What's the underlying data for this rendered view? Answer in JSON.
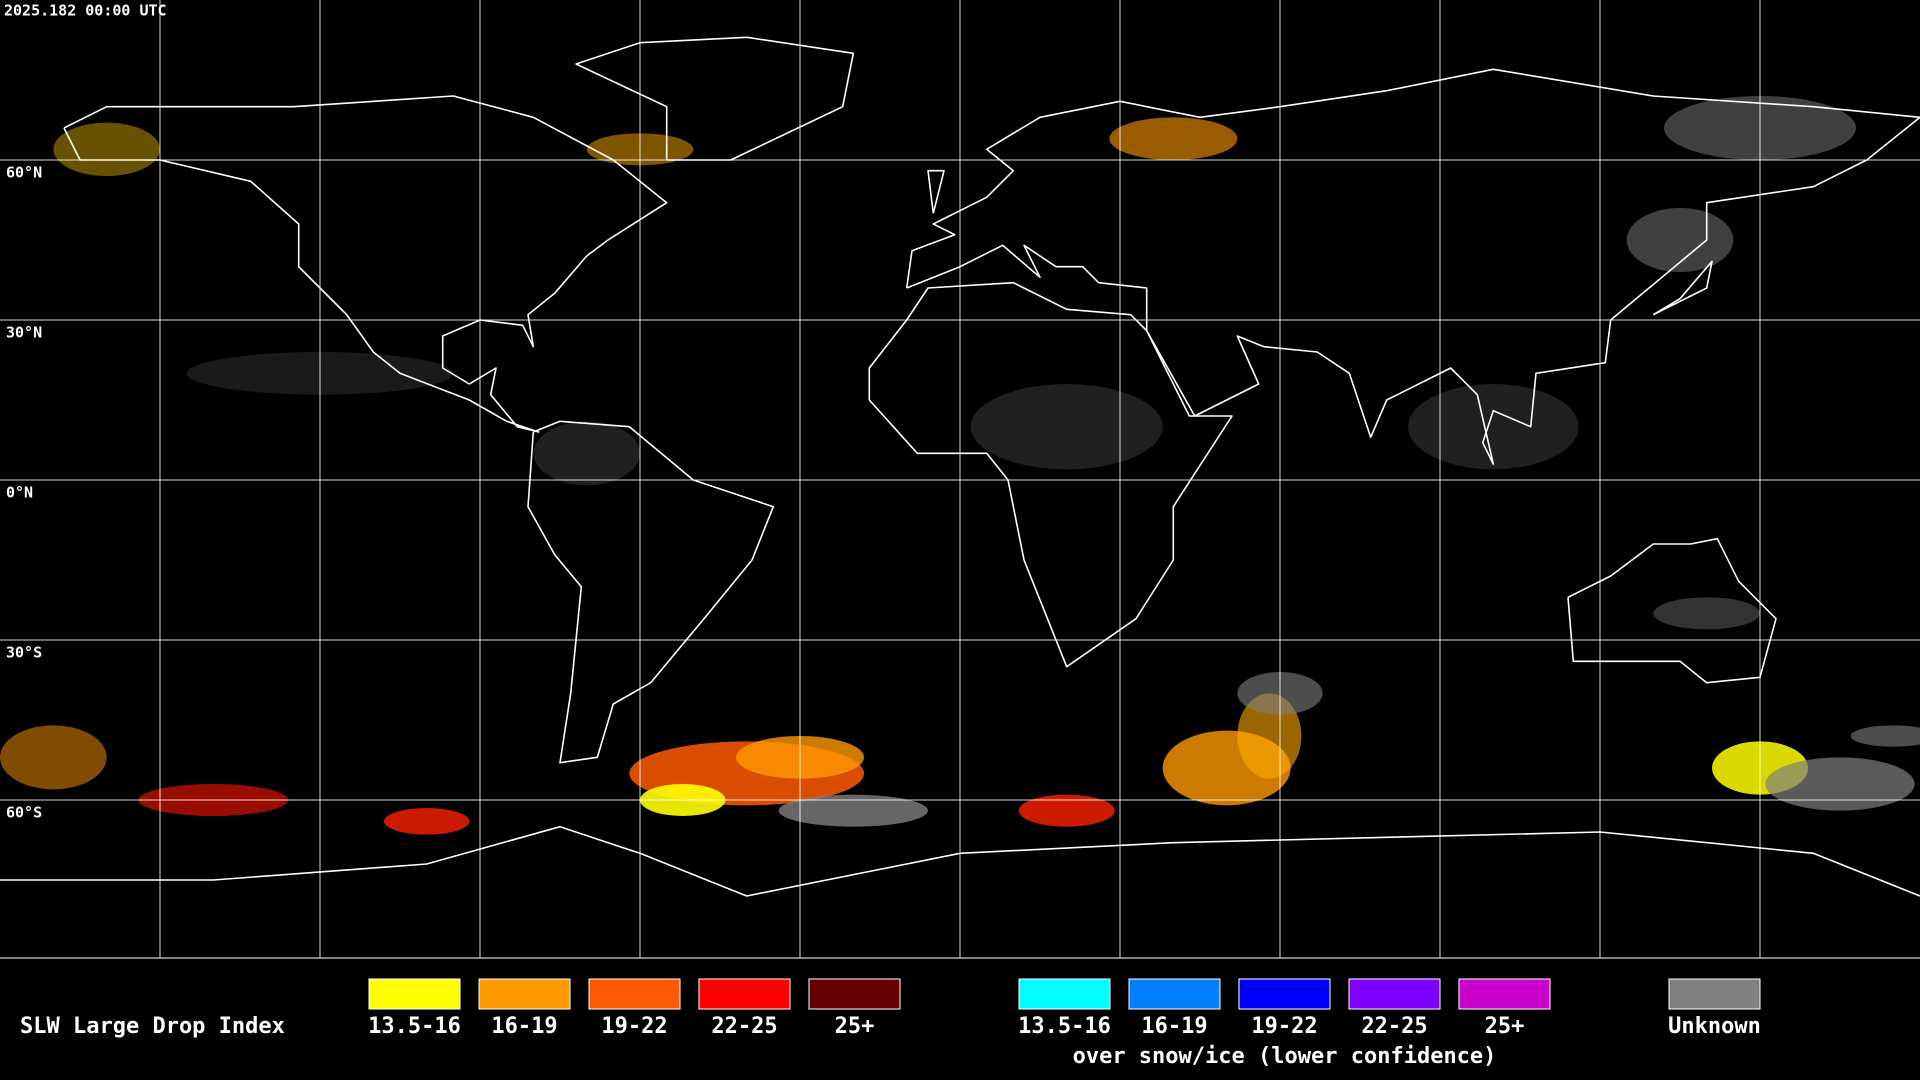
{
  "header": {
    "timestamp": "2025.182 00:00 UTC"
  },
  "map": {
    "latitude_labels": [
      "60°N",
      "30°N",
      "0°N",
      "30°S",
      "60°S"
    ]
  },
  "legend": {
    "title": "SLW Large Drop Index",
    "groups": [
      {
        "items": [
          {
            "label": "13.5-16",
            "color": "#ffff00"
          },
          {
            "label": "16-19",
            "color": "#ff9900"
          },
          {
            "label": "19-22",
            "color": "#ff5a00"
          },
          {
            "label": "22-25",
            "color": "#ff0000"
          },
          {
            "label": "25+",
            "color": "#660000"
          }
        ]
      },
      {
        "items": [
          {
            "label": "13.5-16",
            "color": "#00ffff"
          },
          {
            "label": "16-19",
            "color": "#0080ff"
          },
          {
            "label": "19-22",
            "color": "#0000ff"
          },
          {
            "label": "22-25",
            "color": "#8000ff"
          },
          {
            "label": "25+",
            "color": "#cc00cc"
          }
        ],
        "caption": "over snow/ice (lower confidence)"
      },
      {
        "items": [
          {
            "label": "Unknown",
            "color": "#808080"
          }
        ]
      }
    ]
  }
}
